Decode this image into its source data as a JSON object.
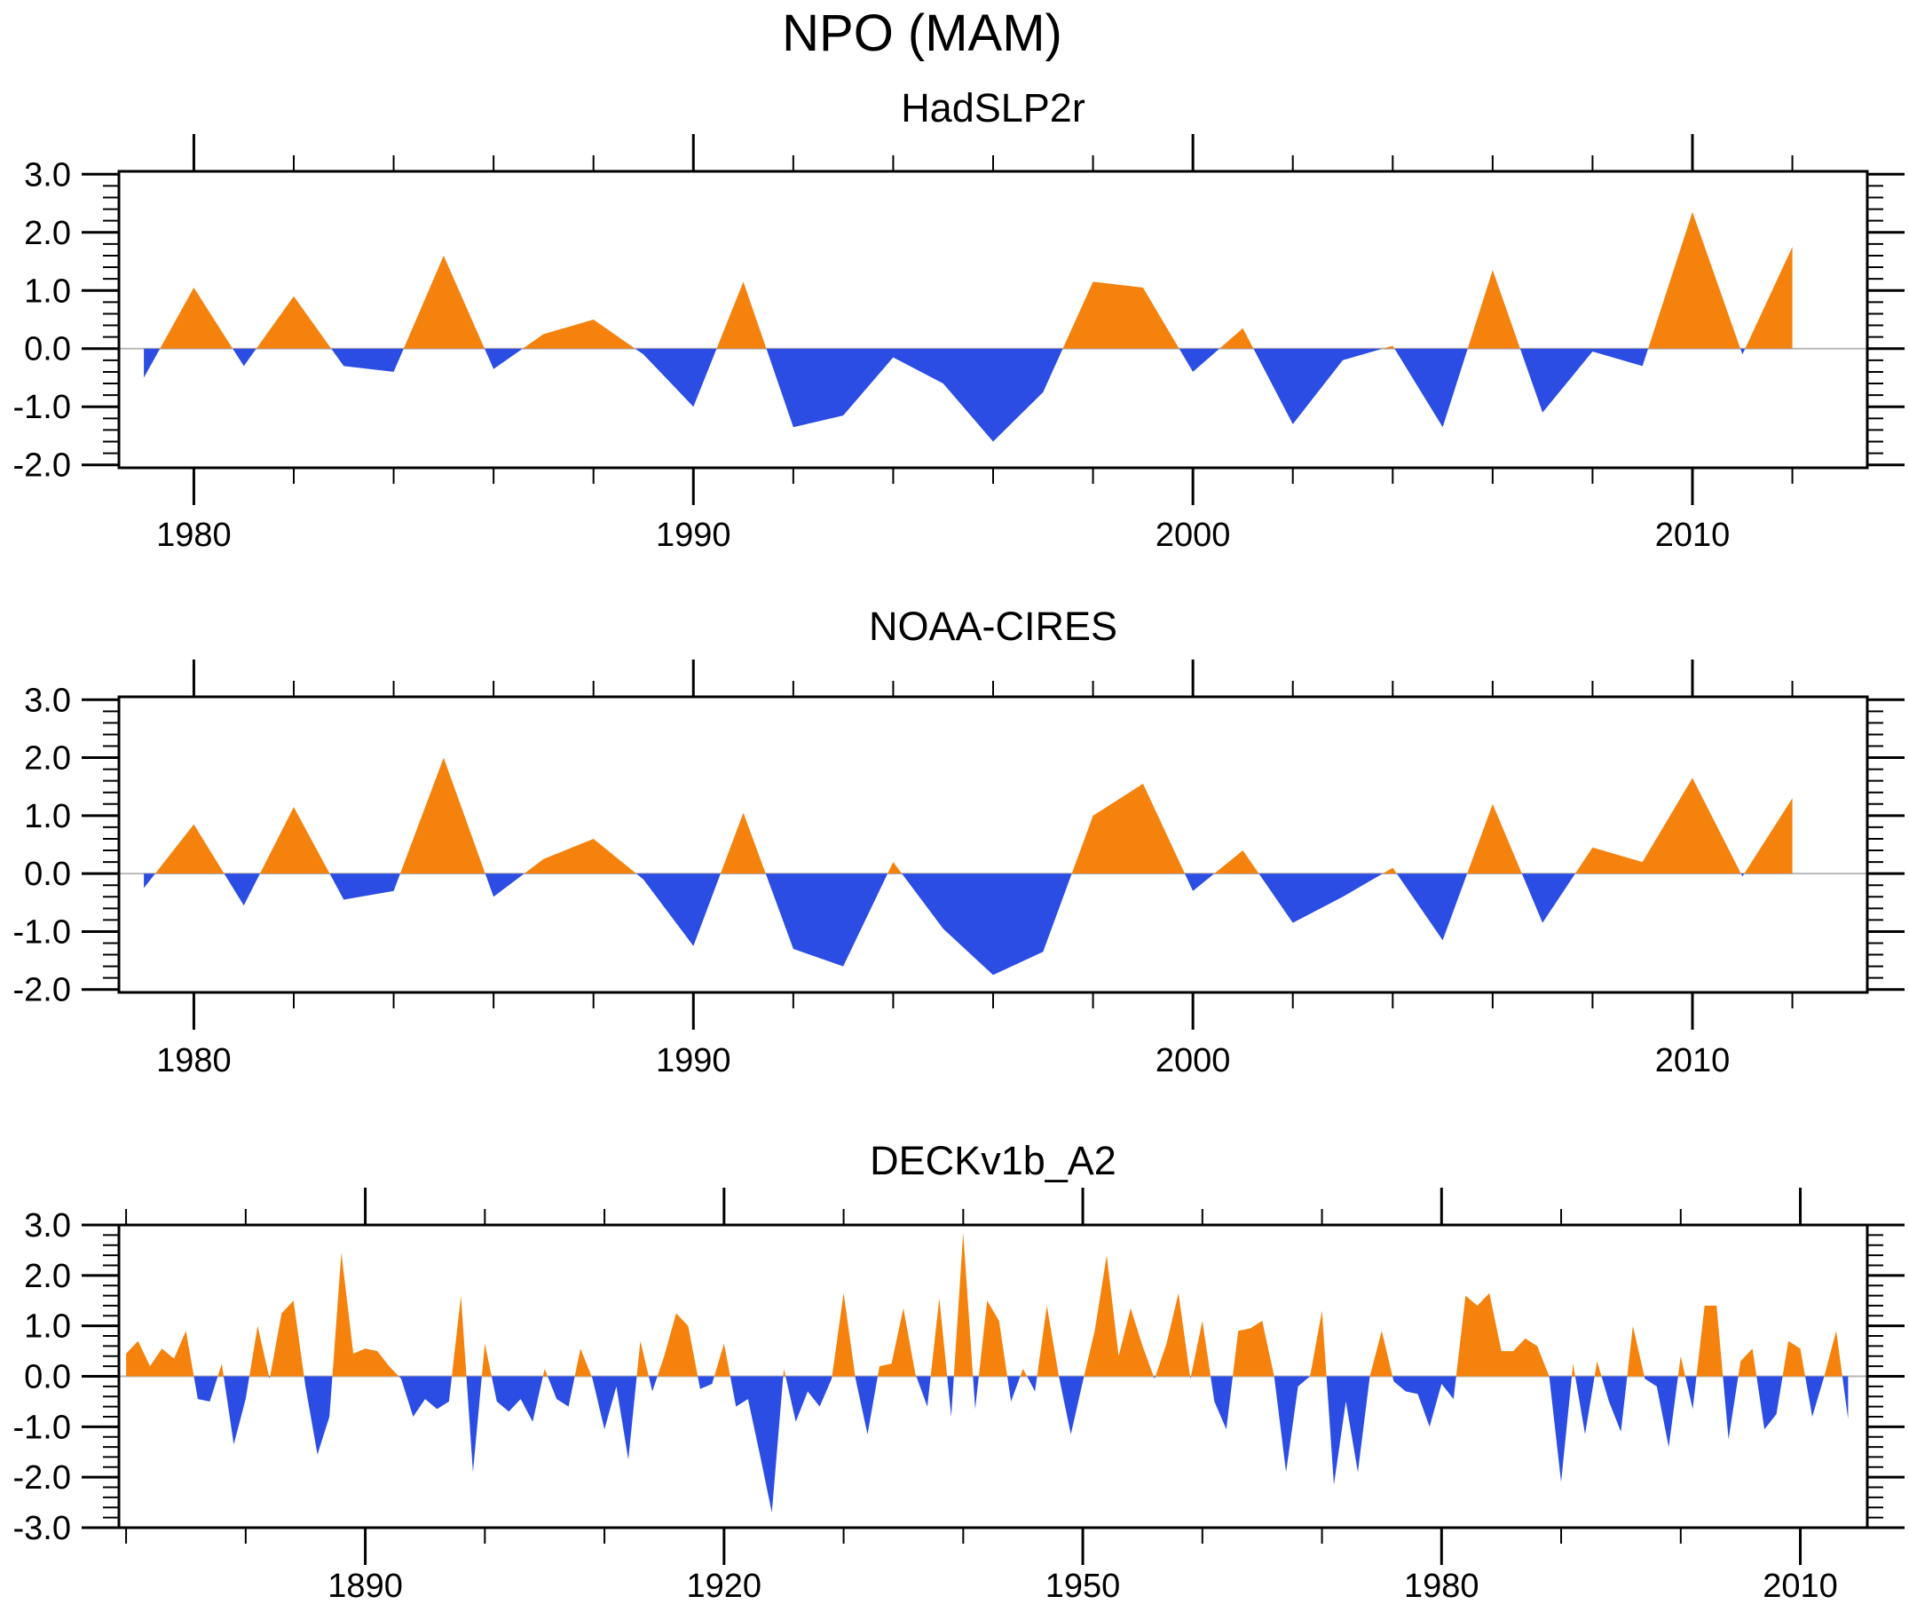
{
  "title": "NPO (MAM)",
  "colors": {
    "positive_fill": "#F5820D",
    "negative_fill": "#2B4DE3",
    "zero_line": "#b9b9b9",
    "axis": "#000000"
  },
  "chart_data": [
    {
      "type": "area",
      "title": "HadSLP2r",
      "start_year": 1979,
      "values": [
        -0.5,
        1.05,
        -0.3,
        0.9,
        -0.3,
        -0.4,
        1.6,
        -0.35,
        0.25,
        0.5,
        -0.1,
        -1.0,
        1.15,
        -1.35,
        -1.15,
        -0.15,
        -0.6,
        -1.6,
        -0.75,
        1.15,
        1.05,
        -0.4,
        0.35,
        -1.3,
        -0.2,
        0.05,
        -1.35,
        1.35,
        -1.1,
        -0.05,
        -0.3,
        2.35,
        -0.1,
        1.75
      ],
      "x_range": [
        1978.5,
        2013.5
      ],
      "x_tick_years": [
        1980,
        1990,
        2000,
        2010
      ],
      "x_tick_labels": [
        "1980",
        "1990",
        "2000",
        "2010"
      ],
      "x_minor_start": 1980,
      "x_minor_step": 2,
      "y_range": [
        -2.05,
        3.05
      ],
      "y_tick_values": [
        3,
        2,
        1,
        0,
        -1,
        -2
      ],
      "y_tick_labels": [
        "3.0",
        "2.0",
        "1.0",
        "0.0",
        "-1.0",
        "-2.0"
      ],
      "y_minor_start": -2.0,
      "y_minor_step": 0.2,
      "grid": "off",
      "legend": "none"
    },
    {
      "type": "area",
      "title": "NOAA-CIRES",
      "start_year": 1979,
      "values": [
        -0.25,
        0.85,
        -0.55,
        1.15,
        -0.45,
        -0.3,
        2.0,
        -0.4,
        0.25,
        0.6,
        -0.1,
        -1.25,
        1.05,
        -1.3,
        -1.6,
        0.2,
        -0.95,
        -1.75,
        -1.35,
        1.0,
        1.55,
        -0.3,
        0.4,
        -0.85,
        -0.4,
        0.1,
        -1.15,
        1.2,
        -0.85,
        0.45,
        0.2,
        1.65,
        -0.05,
        1.3
      ],
      "x_range": [
        1978.5,
        2013.5
      ],
      "x_tick_years": [
        1980,
        1990,
        2000,
        2010
      ],
      "x_tick_labels": [
        "1980",
        "1990",
        "2000",
        "2010"
      ],
      "x_minor_start": 1980,
      "x_minor_step": 2,
      "y_range": [
        -2.05,
        3.05
      ],
      "y_tick_values": [
        3,
        2,
        1,
        0,
        -1,
        -2
      ],
      "y_tick_labels": [
        "3.0",
        "2.0",
        "1.0",
        "0.0",
        "-1.0",
        "-2.0"
      ],
      "y_minor_start": -2.0,
      "y_minor_step": 0.2,
      "grid": "off",
      "legend": "none"
    },
    {
      "type": "area",
      "title": "DECKv1b_A2",
      "start_year": 1870,
      "values": [
        0.45,
        0.7,
        0.2,
        0.55,
        0.35,
        0.9,
        -0.45,
        -0.5,
        0.25,
        -1.35,
        -0.45,
        1.0,
        -0.05,
        1.25,
        1.5,
        -0.2,
        -1.55,
        -0.8,
        2.45,
        0.45,
        0.55,
        0.5,
        0.2,
        -0.05,
        -0.8,
        -0.45,
        -0.65,
        -0.5,
        1.6,
        -1.9,
        0.65,
        -0.5,
        -0.7,
        -0.45,
        -0.9,
        0.15,
        -0.45,
        -0.6,
        0.55,
        -0.05,
        -1.05,
        -0.2,
        -1.65,
        0.7,
        -0.3,
        0.4,
        1.25,
        1.0,
        -0.25,
        -0.15,
        0.65,
        -0.6,
        -0.45,
        -1.55,
        -2.7,
        0.15,
        -0.9,
        -0.3,
        -0.6,
        -0.05,
        1.65,
        -0.05,
        -1.15,
        0.2,
        0.25,
        1.35,
        0.05,
        -0.6,
        1.55,
        -0.8,
        2.85,
        -0.65,
        1.5,
        1.1,
        -0.5,
        0.15,
        -0.3,
        1.4,
        0.0,
        -1.15,
        -0.1,
        0.9,
        2.4,
        0.4,
        1.35,
        0.6,
        -0.05,
        0.65,
        1.65,
        -0.05,
        1.1,
        -0.5,
        -1.05,
        0.9,
        0.95,
        1.1,
        0.0,
        -1.9,
        -0.2,
        0.0,
        1.3,
        -2.15,
        -0.5,
        -1.9,
        0.0,
        0.9,
        -0.1,
        -0.3,
        -0.35,
        -1.0,
        -0.15,
        -0.45,
        1.6,
        1.4,
        1.65,
        0.5,
        0.5,
        0.75,
        0.6,
        0.0,
        -2.1,
        0.25,
        -1.15,
        0.3,
        -0.5,
        -1.1,
        1.0,
        -0.05,
        -0.2,
        -1.4,
        0.4,
        -0.65,
        1.4,
        1.4,
        -1.25,
        0.3,
        0.55,
        -1.05,
        -0.75,
        0.7,
        0.55,
        -0.8,
        0.0,
        0.9,
        -0.85
      ],
      "x_range": [
        1869.4,
        2015.6
      ],
      "x_tick_years": [
        1890,
        1920,
        1950,
        1980,
        2010
      ],
      "x_tick_labels": [
        "1890",
        "1920",
        "1950",
        "1980",
        "2010"
      ],
      "x_minor_start": 1870,
      "x_minor_step": 10,
      "y_range": [
        -3.0,
        3.0
      ],
      "y_tick_values": [
        3,
        2,
        1,
        0,
        -1,
        -2,
        -3
      ],
      "y_tick_labels": [
        "3.0",
        "2.0",
        "1.0",
        "0.0",
        "-1.0",
        "-2.0",
        "-3.0"
      ],
      "y_minor_start": -3.0,
      "y_minor_step": 0.2,
      "grid": "off",
      "legend": "none"
    }
  ]
}
